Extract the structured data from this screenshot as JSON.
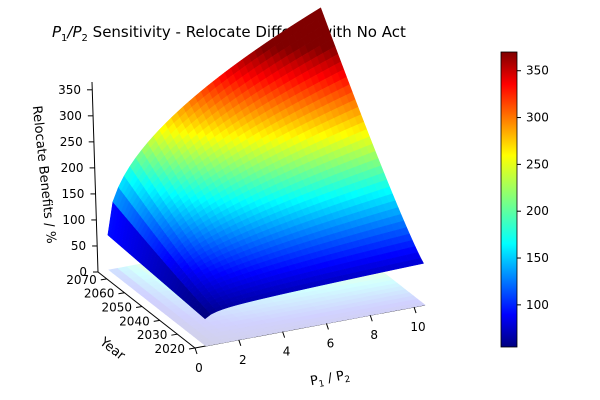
{
  "chart_data": {
    "type": "surface3d",
    "title_main": "P",
    "title_sub1": "1",
    "title_slash": "/P",
    "title_sub2": "2",
    "title_rest": " Sensitivity - Relocate Differed with No Act",
    "x_axis": {
      "label_main1": "P",
      "label_sub1": "1",
      "label_mid": " / P",
      "label_sub2": "2",
      "range": [
        0,
        10.5
      ],
      "ticks": [
        "0",
        "2",
        "4",
        "6",
        "8",
        "10"
      ],
      "tick_values": [
        0,
        2,
        4,
        6,
        8,
        10
      ]
    },
    "y_axis": {
      "label": "Year",
      "range": [
        2020,
        2075
      ],
      "ticks": [
        "2020",
        "2030",
        "2040",
        "2050",
        "2060",
        "2070"
      ],
      "tick_values": [
        2020,
        2030,
        2040,
        2050,
        2060,
        2070
      ]
    },
    "z_axis": {
      "label": "Relocate Benefits / %",
      "range": [
        0,
        350
      ],
      "ticks": [
        "0",
        "50",
        "100",
        "150",
        "200",
        "250",
        "300",
        "350"
      ],
      "tick_values": [
        0,
        50,
        100,
        150,
        200,
        250,
        300,
        350
      ]
    },
    "colorbar": {
      "colormap": "jet",
      "range": [
        55,
        370
      ],
      "ticks": [
        "100",
        "150",
        "200",
        "250",
        "300",
        "350"
      ],
      "tick_values": [
        100,
        150,
        200,
        250,
        300,
        350
      ]
    },
    "corner_values": [
      {
        "x": 0.5,
        "year": 2020,
        "z": 60
      },
      {
        "x": 0.5,
        "year": 2075,
        "z": 80
      },
      {
        "x": 10.5,
        "year": 2020,
        "z": 85
      },
      {
        "x": 10.5,
        "year": 2075,
        "z": 370
      }
    ],
    "projection_contour": true
  }
}
